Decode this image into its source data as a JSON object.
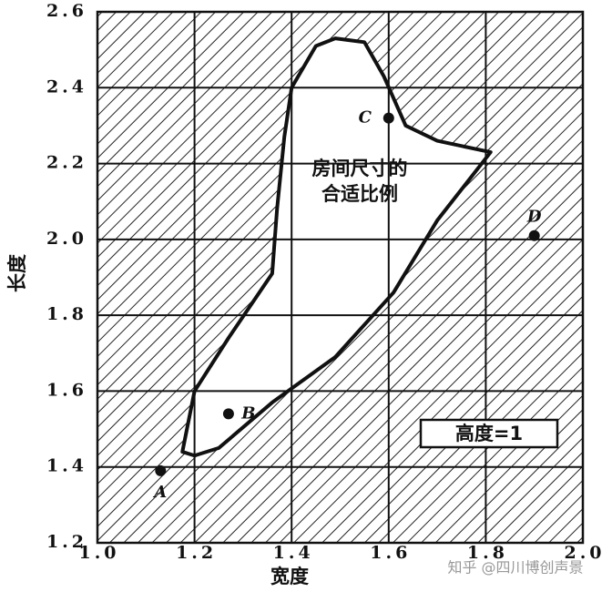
{
  "chart_data": {
    "type": "scatter",
    "xlabel": "宽度",
    "ylabel": "长度",
    "xlim": [
      1.0,
      2.0
    ],
    "ylim": [
      1.2,
      2.6
    ],
    "xticks": [
      {
        "value": 1.0,
        "label": "1.0"
      },
      1.2,
      1.4,
      1.6,
      1.8,
      {
        "value": 2.0,
        "label": "2.0"
      }
    ],
    "yticks": [
      1.2,
      1.4,
      1.6,
      1.8,
      {
        "value": 2.0,
        "label": "2.0"
      },
      2.2,
      2.4,
      2.6
    ],
    "grid": true,
    "points": {
      "labels": [
        "A",
        "B",
        "C",
        "D"
      ],
      "x": [
        1.13,
        1.27,
        1.6,
        1.9
      ],
      "y": [
        1.39,
        1.54,
        2.32,
        2.01
      ],
      "color": "#111111"
    },
    "region": {
      "label": [
        "房间尺寸的",
        "合适比例"
      ],
      "x": [
        1.175,
        1.2,
        1.27,
        1.36,
        1.37,
        1.385,
        1.4,
        1.45,
        1.49,
        1.55,
        1.59,
        1.635,
        1.7,
        1.81,
        1.7,
        1.61,
        1.49,
        1.36,
        1.25,
        1.2
      ],
      "y": [
        1.44,
        1.6,
        1.74,
        1.91,
        2.08,
        2.27,
        2.4,
        2.51,
        2.53,
        2.52,
        2.43,
        2.3,
        2.26,
        2.23,
        2.05,
        1.86,
        1.69,
        1.57,
        1.45,
        1.43
      ]
    },
    "annotation": "高度=1",
    "watermark": "知乎 @四川博创声景"
  }
}
